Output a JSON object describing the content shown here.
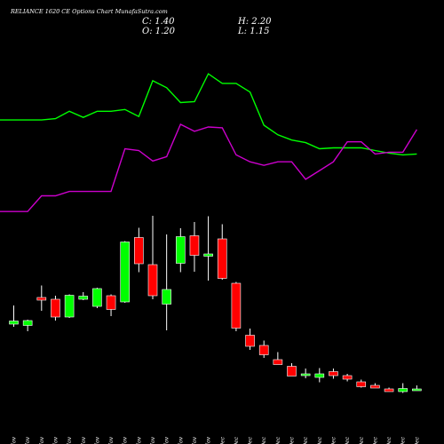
{
  "chart_data": {
    "type": "candlestick",
    "title": "RELIANCE 1620  CE Options  Chart MunafaSutra.com",
    "ohlc_readout": {
      "C": "C: 1.40",
      "O": "O: 1.20",
      "H": "H: 2.20",
      "L": "L: 1.15"
    },
    "categories": [
      "10 Nov",
      "11 Nov",
      "12 Nov",
      "13 Nov",
      "14 Nov",
      "17 Nov",
      "18 Nov",
      "19 Nov",
      "20 Nov",
      "21 Nov",
      "24 Nov",
      "25 Nov",
      "26 Nov",
      "27 Nov",
      "28 Nov",
      "01 Dec",
      "02 Dec",
      "03 Dec",
      "04 Dec",
      "05 Dec",
      "08 Dec",
      "09 Dec",
      "10 Dec",
      "11 Dec",
      "12 Dec",
      "15 Dec",
      "16 Dec",
      "17 Dec",
      "18 Dec",
      "19 Dec"
    ],
    "candles": [
      {
        "o": 24.8,
        "h": 29.0,
        "l": 24.2,
        "c": 25.5,
        "color": "green"
      },
      {
        "o": 24.5,
        "h": 25.8,
        "l": 23.2,
        "c": 25.6,
        "color": "green"
      },
      {
        "o": 30.8,
        "h": 33.5,
        "l": 27.8,
        "c": 30.2,
        "color": "red"
      },
      {
        "o": 30.4,
        "h": 31.2,
        "l": 25.6,
        "c": 26.4,
        "color": "red"
      },
      {
        "o": 26.4,
        "h": 31.5,
        "l": 26.2,
        "c": 31.3,
        "color": "green"
      },
      {
        "o": 30.4,
        "h": 32.0,
        "l": 30.2,
        "c": 31.1,
        "color": "green"
      },
      {
        "o": 28.8,
        "h": 33.0,
        "l": 28.4,
        "c": 32.8,
        "color": "green"
      },
      {
        "o": 31.2,
        "h": 31.5,
        "l": 26.6,
        "c": 28.1,
        "color": "red"
      },
      {
        "o": 29.8,
        "h": 43.5,
        "l": 29.6,
        "c": 43.3,
        "color": "green"
      },
      {
        "o": 44.3,
        "h": 46.5,
        "l": 36.5,
        "c": 38.4,
        "color": "red"
      },
      {
        "o": 38.2,
        "h": 49.2,
        "l": 30.4,
        "c": 31.2,
        "color": "red"
      },
      {
        "o": 29.3,
        "h": 45.0,
        "l": 23.4,
        "c": 32.6,
        "color": "green"
      },
      {
        "o": 38.5,
        "h": 46.4,
        "l": 36.5,
        "c": 44.5,
        "color": "green"
      },
      {
        "o": 44.7,
        "h": 47.8,
        "l": 36.6,
        "c": 40.3,
        "color": "red"
      },
      {
        "o": 40.1,
        "h": 49.1,
        "l": 34.6,
        "c": 40.6,
        "color": "green"
      },
      {
        "o": 44.0,
        "h": 47.3,
        "l": 34.8,
        "c": 35.1,
        "color": "red"
      },
      {
        "o": 34.0,
        "h": 34.3,
        "l": 23.2,
        "c": 23.9,
        "color": "red"
      },
      {
        "o": 22.3,
        "h": 23.8,
        "l": 19.0,
        "c": 19.8,
        "color": "red"
      },
      {
        "o": 20.0,
        "h": 21.1,
        "l": 17.2,
        "c": 17.9,
        "color": "red"
      },
      {
        "o": 16.8,
        "h": 18.5,
        "l": 16.0,
        "c": 15.7,
        "color": "red"
      },
      {
        "o": 15.3,
        "h": 16.0,
        "l": 13.3,
        "c": 13.1,
        "color": "red"
      },
      {
        "o": 13.2,
        "h": 14.8,
        "l": 12.6,
        "c": 13.6,
        "color": "green"
      },
      {
        "o": 12.8,
        "h": 14.9,
        "l": 11.7,
        "c": 13.6,
        "color": "green"
      },
      {
        "o": 14.1,
        "h": 14.8,
        "l": 12.5,
        "c": 13.2,
        "color": "red"
      },
      {
        "o": 13.2,
        "h": 13.6,
        "l": 11.9,
        "c": 12.4,
        "color": "red"
      },
      {
        "o": 11.8,
        "h": 12.3,
        "l": 10.5,
        "c": 10.7,
        "color": "red"
      },
      {
        "o": 11.0,
        "h": 11.5,
        "l": 10.4,
        "c": 10.4,
        "color": "red"
      },
      {
        "o": 10.2,
        "h": 10.5,
        "l": 9.6,
        "c": 9.6,
        "color": "red"
      },
      {
        "o": 9.6,
        "h": 11.5,
        "l": 9.3,
        "c": 10.3,
        "color": "green"
      },
      {
        "o": 10.2,
        "h": 11.0,
        "l": 10.0,
        "c": 10.2,
        "color": "green"
      }
    ],
    "series": [
      {
        "name": "",
        "color": "#00ff00",
        "values": [
          79.0,
          79.0,
          79.0,
          79.3,
          81.0,
          79.6,
          81.0,
          81.0,
          81.4,
          79.8,
          88.0,
          86.4,
          83.0,
          83.2,
          89.6,
          87.4,
          87.4,
          85.4,
          77.8,
          75.6,
          74.4,
          73.8,
          72.4,
          72.6,
          72.6,
          72.6,
          72.0,
          71.4,
          71.0,
          71.2
        ]
      },
      {
        "name": "",
        "color": "#cc00cc",
        "values": [
          58.0,
          58.0,
          61.6,
          61.6,
          62.6,
          62.6,
          62.6,
          62.6,
          72.4,
          72.0,
          69.6,
          70.6,
          78.0,
          76.4,
          77.4,
          77.2,
          71.0,
          69.4,
          68.6,
          69.4,
          69.4,
          65.4,
          67.4,
          69.4,
          74.0,
          74.0,
          71.2,
          71.6,
          71.6,
          76.8
        ]
      }
    ],
    "xlim": [
      0,
      30
    ],
    "ylim": [
      0,
      100
    ],
    "grid": false,
    "legend": "none"
  }
}
